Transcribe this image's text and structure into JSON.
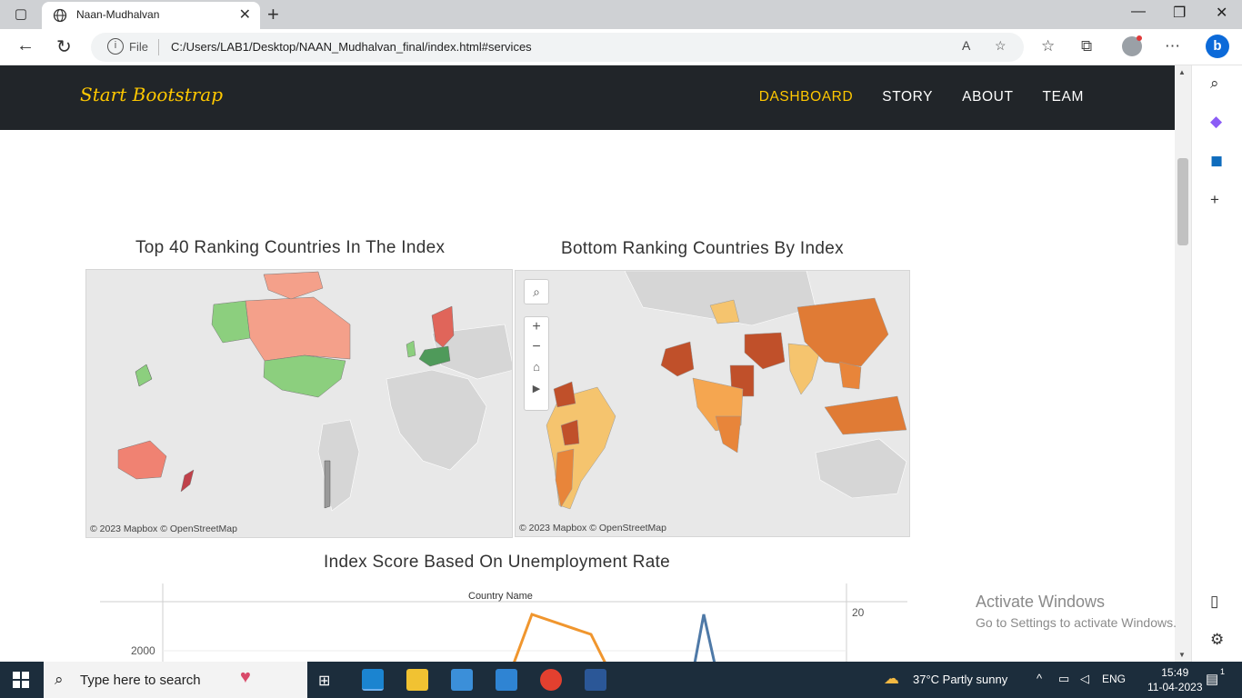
{
  "browser": {
    "tab_title": "Naan-Mudhalvan",
    "file_label": "File",
    "url": "C:/Users/LAB1/Desktop/NAAN_Mudhalvan_final/index.html#services"
  },
  "site": {
    "brand": "Start Bootstrap",
    "nav": [
      {
        "label": "DASHBOARD",
        "active": true
      },
      {
        "label": "STORY",
        "active": false
      },
      {
        "label": "ABOUT",
        "active": false
      },
      {
        "label": "TEAM",
        "active": false
      }
    ]
  },
  "dashboard": {
    "map1_title": "Top 40 Ranking Countries In The Index",
    "map2_title": "Bottom Ranking Countries By Index",
    "map_attribution": "© 2023 Mapbox  © OpenStreetMap",
    "line_chart_title": "Index Score Based On Unemployment Rate"
  },
  "chart_data": {
    "type": "line",
    "title": "Index Score Based On Unemployment Rate",
    "xlabel": "Country Name",
    "left_axis_ticks": [
      "2000"
    ],
    "right_axis_ticks": [
      "20"
    ]
  },
  "windows": {
    "activate_title": "Activate Windows",
    "activate_sub": "Go to Settings to activate Windows."
  },
  "taskbar": {
    "search_placeholder": "Type here to search",
    "weather": "37°C  Partly sunny",
    "lang": "ENG",
    "time": "15:49",
    "date": "11-04-2023",
    "notification_count": "1"
  },
  "colors": {
    "navbar_bg": "#212529",
    "brand": "#ffc800",
    "map_top_green": "#8ccf7e",
    "map_top_salmon": "#f4a08a",
    "map_top_red": "#e0655a",
    "map_bottom_light": "#f5c46e",
    "map_bottom_mid": "#e8853a",
    "map_bottom_dark": "#c0502a",
    "line_orange": "#f0962e",
    "line_blue": "#4e79a7"
  }
}
